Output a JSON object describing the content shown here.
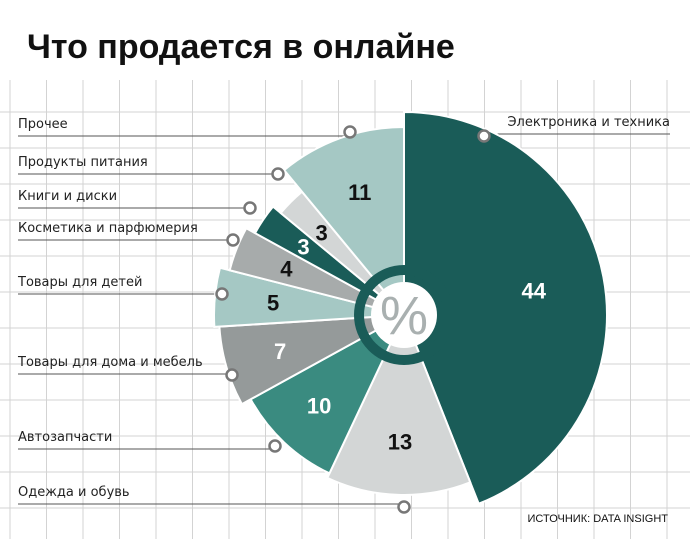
{
  "chart_data": {
    "type": "pie",
    "title": "Что продается в онлайне",
    "center_label": "%",
    "source": "ИСТОЧНИК: DATA INSIGHT",
    "slices": [
      {
        "category": "Электроника и техника",
        "value": 44,
        "color": "#1a5c58",
        "label_color": "#ffffff"
      },
      {
        "category": "Одежда и обувь",
        "value": 13,
        "color": "#d3d6d6",
        "label_color": "#111111"
      },
      {
        "category": "Автозапчасти",
        "value": 10,
        "color": "#3a8b80",
        "label_color": "#ffffff"
      },
      {
        "category": "Товары для дома и мебель",
        "value": 7,
        "color": "#959a9a",
        "label_color": "#ffffff"
      },
      {
        "category": "Товары для детей",
        "value": 5,
        "color": "#a5c8c4",
        "label_color": "#111111"
      },
      {
        "category": "Косметика и парфюмерия",
        "value": 4,
        "color": "#a7abab",
        "label_color": "#111111"
      },
      {
        "category": "Книги и диски",
        "value": 3,
        "color": "#1a5c58",
        "label_color": "#ffffff"
      },
      {
        "category": "Продукты питания",
        "value": 3,
        "color": "#d3d6d6",
        "label_color": "#111111"
      },
      {
        "category": "Прочее",
        "value": 11,
        "color": "#a5c8c4",
        "label_color": "#111111"
      }
    ]
  }
}
